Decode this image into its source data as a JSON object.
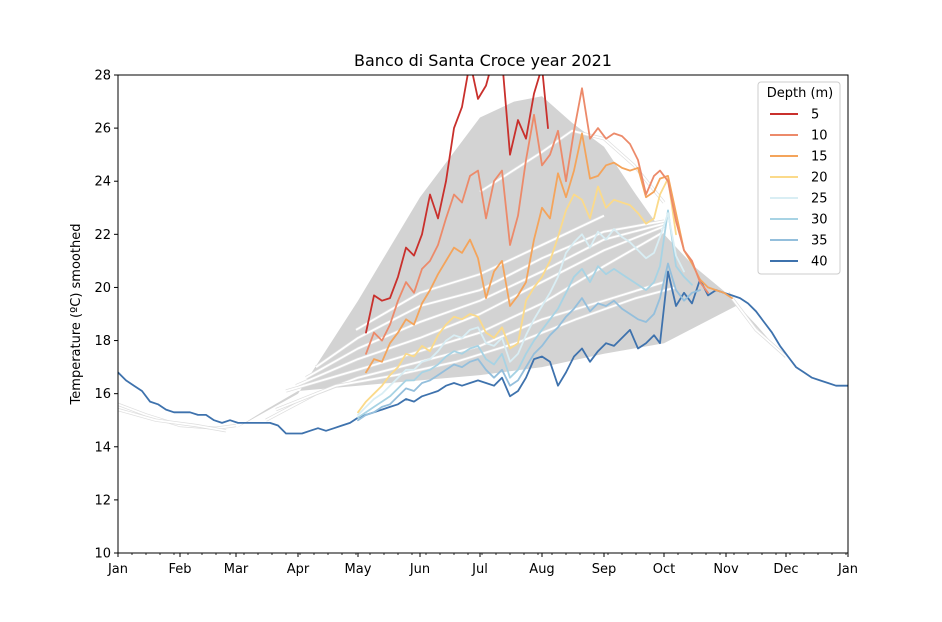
{
  "chart_data": {
    "type": "line",
    "title": "Banco di Santa Croce year 2021",
    "xlabel": "",
    "ylabel": "Temperature (ºC) smoothed",
    "ylim": [
      10,
      28
    ],
    "yticks": [
      10,
      12,
      14,
      16,
      18,
      20,
      22,
      24,
      26,
      28
    ],
    "xlim": [
      1,
      366
    ],
    "xtick_labels": [
      "Jan",
      "Feb",
      "Mar",
      "Apr",
      "May",
      "Jun",
      "Jul",
      "Aug",
      "Sep",
      "Oct",
      "Nov",
      "Dec",
      "Jan"
    ],
    "xtick_days": [
      1,
      32,
      60,
      91,
      121,
      152,
      182,
      213,
      244,
      274,
      305,
      335,
      366
    ],
    "x_unit": "day of year 2021",
    "grid": false,
    "legend": {
      "title": "Depth (m)",
      "placement": "top-right"
    },
    "climatology_envelope": {
      "color": "#d3d3d3",
      "x": [
        91,
        121,
        152,
        182,
        199,
        213,
        228,
        244,
        259,
        274,
        289,
        305,
        320,
        335,
        310,
        274,
        244,
        213,
        182,
        152,
        121,
        91,
        75,
        60
      ],
      "y": [
        16.0,
        19.5,
        23.4,
        26.4,
        27.0,
        27.2,
        26.2,
        25.3,
        23.6,
        22.0,
        20.8,
        19.8,
        18.6,
        17.3,
        19.3,
        17.9,
        17.5,
        17.0,
        16.7,
        16.5,
        16.3,
        16.1,
        15.4,
        14.7
      ]
    },
    "historical_series": {
      "color": "#ffffff",
      "background_color": "#dddddd",
      "lines": [
        {
          "x": [
            1,
            15,
            32,
            50,
            60
          ],
          "y": [
            15.6,
            15.2,
            14.8,
            14.7,
            14.8
          ]
        },
        {
          "x": [
            1,
            20,
            40,
            55
          ],
          "y": [
            15.4,
            15.0,
            14.8,
            14.6
          ]
        },
        {
          "x": [
            75,
            100,
            121,
            152,
            182,
            213,
            244,
            274
          ],
          "y": [
            15.0,
            16.0,
            16.6,
            17.2,
            17.8,
            18.8,
            19.5,
            20.2
          ]
        },
        {
          "x": [
            80,
            110,
            140,
            170,
            200,
            230,
            260,
            280
          ],
          "y": [
            15.4,
            16.3,
            16.7,
            17.2,
            17.9,
            18.8,
            19.6,
            20.0
          ]
        },
        {
          "x": [
            85,
            121,
            152,
            182,
            213,
            244,
            274
          ],
          "y": [
            16.1,
            16.9,
            17.6,
            18.3,
            19.4,
            20.8,
            22.1
          ]
        },
        {
          "x": [
            90,
            121,
            152,
            182,
            213,
            244,
            274
          ],
          "y": [
            16.3,
            17.3,
            18.1,
            19.0,
            20.2,
            21.4,
            22.3
          ]
        },
        {
          "x": [
            95,
            121,
            152,
            182,
            213,
            244,
            274
          ],
          "y": [
            16.6,
            17.7,
            18.7,
            19.5,
            20.6,
            21.8,
            22.4
          ]
        },
        {
          "x": [
            100,
            121,
            152,
            182,
            213,
            244,
            274
          ],
          "y": [
            17.0,
            18.1,
            19.3,
            19.9,
            21.1,
            22.1,
            22.5
          ]
        },
        {
          "x": [
            120,
            152,
            182,
            213,
            244
          ],
          "y": [
            18.4,
            19.8,
            20.5,
            21.6,
            22.7
          ]
        },
        {
          "x": [
            182,
            213,
            228,
            244,
            259,
            274
          ],
          "y": [
            23.6,
            25.1,
            25.9,
            25.6,
            24.6,
            23.2
          ]
        },
        {
          "x": [
            306,
            320,
            335
          ],
          "y": [
            19.8,
            18.4,
            17.4
          ]
        }
      ]
    },
    "series": [
      {
        "name": "5",
        "color": "#c9302c",
        "x": [
          125,
          129,
          133,
          137,
          141,
          145,
          149,
          153,
          157,
          161,
          165,
          169,
          173,
          177,
          181,
          185,
          189,
          193,
          197,
          201,
          205,
          209,
          213,
          216
        ],
        "y": [
          18.3,
          19.7,
          19.5,
          19.6,
          20.4,
          21.5,
          21.2,
          22.0,
          23.5,
          22.6,
          24.0,
          26.0,
          26.8,
          28.5,
          27.1,
          27.6,
          28.7,
          28.6,
          25.0,
          26.3,
          25.6,
          27.3,
          28.3,
          26.0
        ]
      },
      {
        "name": "10",
        "color": "#ec8a6a",
        "x": [
          125,
          129,
          133,
          137,
          141,
          145,
          149,
          153,
          157,
          161,
          165,
          169,
          173,
          177,
          181,
          185,
          189,
          193,
          197,
          201,
          205,
          209,
          213,
          217,
          221,
          225,
          229,
          233,
          237,
          241,
          245,
          249,
          253,
          257,
          261,
          265,
          269,
          272,
          276,
          280,
          284,
          288,
          292,
          296
        ],
        "y": [
          17.5,
          18.3,
          18.0,
          18.6,
          19.5,
          20.2,
          19.8,
          20.7,
          21.0,
          21.6,
          22.6,
          23.5,
          23.2,
          24.2,
          24.4,
          22.6,
          24.0,
          24.4,
          21.6,
          22.7,
          24.8,
          26.5,
          24.6,
          25.0,
          25.9,
          24.0,
          25.9,
          27.5,
          25.6,
          26.0,
          25.6,
          25.8,
          25.7,
          25.4,
          24.8,
          23.5,
          24.2,
          24.4,
          24.0,
          22.5,
          21.4,
          21.0,
          20.2,
          19.8
        ]
      },
      {
        "name": "15",
        "color": "#f4a45b",
        "x": [
          125,
          129,
          133,
          137,
          141,
          145,
          149,
          153,
          157,
          161,
          165,
          169,
          173,
          177,
          181,
          185,
          189,
          193,
          197,
          201,
          205,
          209,
          213,
          217,
          221,
          225,
          229,
          233,
          237,
          241,
          245,
          249,
          253,
          257,
          261,
          265,
          269,
          272,
          276,
          280,
          284,
          288,
          292,
          296,
          300,
          304,
          308
        ],
        "y": [
          16.8,
          17.3,
          17.2,
          17.9,
          18.3,
          18.8,
          18.6,
          19.4,
          19.9,
          20.5,
          21.0,
          21.5,
          21.3,
          21.8,
          21.1,
          19.6,
          20.6,
          21.0,
          19.3,
          19.7,
          20.2,
          21.8,
          23.0,
          22.6,
          24.3,
          23.4,
          24.4,
          25.8,
          24.1,
          24.2,
          24.6,
          24.7,
          24.5,
          24.4,
          24.5,
          23.4,
          23.6,
          24.1,
          24.2,
          22.8,
          21.4,
          20.9,
          20.3,
          20.0,
          19.9,
          19.8,
          19.6
        ]
      },
      {
        "name": "20",
        "color": "#fbda8a",
        "x": [
          121,
          125,
          129,
          133,
          137,
          141,
          145,
          149,
          153,
          157,
          161,
          165,
          169,
          173,
          177,
          181,
          185,
          189,
          193,
          197,
          201,
          205,
          209,
          213,
          217,
          221,
          225,
          229,
          233,
          237,
          241,
          245,
          249,
          253,
          257,
          261,
          265,
          269,
          272,
          276,
          280
        ],
        "y": [
          15.3,
          15.7,
          16.0,
          16.3,
          16.7,
          17.0,
          17.5,
          17.4,
          17.8,
          17.6,
          18.2,
          18.6,
          18.9,
          18.8,
          19.0,
          18.9,
          18.3,
          18.1,
          18.5,
          17.7,
          17.9,
          19.5,
          20.0,
          20.4,
          21.0,
          21.9,
          22.9,
          23.5,
          23.3,
          22.6,
          23.8,
          23.0,
          23.3,
          23.2,
          23.1,
          22.8,
          22.4,
          22.6,
          23.5,
          24.1,
          22.0
        ]
      },
      {
        "name": "25",
        "color": "#d9eef4",
        "x": [
          121,
          125,
          129,
          133,
          137,
          141,
          145,
          149,
          153,
          157,
          161,
          165,
          169,
          173,
          177,
          181,
          185,
          189,
          193,
          197,
          201,
          205,
          209,
          213,
          217,
          221,
          225,
          229,
          233,
          237,
          241,
          245,
          249,
          253,
          257,
          261,
          265,
          269,
          272,
          276,
          280,
          284
        ],
        "y": [
          15.2,
          15.5,
          15.8,
          16.0,
          16.3,
          16.6,
          16.9,
          16.9,
          17.2,
          17.3,
          17.6,
          18.0,
          18.2,
          18.1,
          18.4,
          18.5,
          17.9,
          17.8,
          18.1,
          17.2,
          17.5,
          18.2,
          18.8,
          19.3,
          19.8,
          20.4,
          21.3,
          21.7,
          22.0,
          21.5,
          22.1,
          21.8,
          22.2,
          21.9,
          21.7,
          21.4,
          21.1,
          21.3,
          21.9,
          22.8,
          21.2,
          20.6
        ]
      },
      {
        "name": "30",
        "color": "#a7d3e4",
        "x": [
          121,
          125,
          129,
          133,
          137,
          141,
          145,
          149,
          153,
          157,
          161,
          165,
          169,
          173,
          177,
          181,
          185,
          189,
          193,
          197,
          201,
          205,
          209,
          213,
          217,
          221,
          225,
          229,
          233,
          237,
          241,
          245,
          249,
          253,
          257,
          261,
          265,
          269,
          272,
          276,
          280,
          284,
          288
        ],
        "y": [
          15.1,
          15.3,
          15.5,
          15.7,
          15.9,
          16.2,
          16.5,
          16.5,
          16.8,
          16.9,
          17.1,
          17.4,
          17.6,
          17.5,
          17.7,
          17.8,
          17.3,
          17.1,
          17.5,
          16.6,
          16.9,
          17.5,
          18.0,
          18.4,
          18.8,
          19.2,
          19.8,
          20.4,
          20.7,
          20.2,
          20.8,
          20.5,
          20.7,
          20.5,
          20.3,
          20.1,
          19.9,
          20.2,
          20.8,
          22.9,
          20.8,
          20.4,
          20.1
        ]
      },
      {
        "name": "35",
        "color": "#94bfdc",
        "x": [
          121,
          125,
          129,
          133,
          137,
          141,
          145,
          149,
          153,
          157,
          161,
          165,
          169,
          173,
          177,
          181,
          185,
          189,
          193,
          197,
          201,
          205,
          209,
          213,
          217,
          221,
          225,
          229,
          233,
          237,
          241,
          245,
          249,
          253,
          257,
          261,
          265,
          269,
          272,
          276,
          280,
          284,
          288,
          292
        ],
        "y": [
          15.0,
          15.2,
          15.3,
          15.5,
          15.6,
          15.9,
          16.2,
          16.1,
          16.4,
          16.5,
          16.7,
          16.9,
          17.1,
          17.0,
          17.2,
          17.3,
          16.9,
          16.6,
          16.9,
          16.3,
          16.5,
          17.0,
          17.5,
          17.8,
          18.2,
          18.5,
          18.9,
          19.2,
          19.6,
          19.1,
          19.4,
          19.3,
          19.5,
          19.2,
          19.0,
          18.8,
          18.7,
          19.0,
          19.6,
          20.9,
          19.9,
          19.5,
          19.8,
          19.9
        ]
      },
      {
        "name": "40",
        "color": "#3e72ad",
        "x": [
          1,
          5,
          9,
          13,
          17,
          21,
          25,
          29,
          33,
          37,
          41,
          45,
          49,
          53,
          57,
          61,
          65,
          69,
          73,
          77,
          81,
          85,
          89,
          93,
          97,
          101,
          105,
          109,
          113,
          117,
          121,
          125,
          129,
          133,
          137,
          141,
          145,
          149,
          153,
          157,
          161,
          165,
          169,
          173,
          177,
          181,
          185,
          189,
          193,
          197,
          201,
          205,
          209,
          213,
          217,
          221,
          225,
          229,
          233,
          237,
          241,
          245,
          249,
          253,
          257,
          261,
          265,
          269,
          272,
          276,
          280,
          284,
          288,
          292,
          296,
          300,
          304,
          308,
          312,
          316,
          320,
          324,
          328,
          332,
          336,
          340,
          344,
          348,
          352,
          356,
          360,
          366
        ],
        "y": [
          16.8,
          16.5,
          16.3,
          16.1,
          15.7,
          15.6,
          15.4,
          15.3,
          15.3,
          15.3,
          15.2,
          15.2,
          15.0,
          14.9,
          15.0,
          14.9,
          14.9,
          14.9,
          14.9,
          14.9,
          14.8,
          14.5,
          14.5,
          14.5,
          14.6,
          14.7,
          14.6,
          14.7,
          14.8,
          14.9,
          15.1,
          15.2,
          15.3,
          15.4,
          15.5,
          15.6,
          15.8,
          15.7,
          15.9,
          16.0,
          16.1,
          16.3,
          16.4,
          16.3,
          16.4,
          16.5,
          16.4,
          16.3,
          16.6,
          15.9,
          16.1,
          16.6,
          17.3,
          17.4,
          17.2,
          16.3,
          16.8,
          17.4,
          17.7,
          17.2,
          17.6,
          17.9,
          17.8,
          18.1,
          18.4,
          17.7,
          17.9,
          18.2,
          17.9,
          20.6,
          19.3,
          19.8,
          19.4,
          20.3,
          19.7,
          19.9,
          19.8,
          19.7,
          19.6,
          19.4,
          19.1,
          18.7,
          18.3,
          17.8,
          17.4,
          17.0,
          16.8,
          16.6,
          16.5,
          16.4,
          16.3,
          16.3
        ]
      }
    ]
  }
}
